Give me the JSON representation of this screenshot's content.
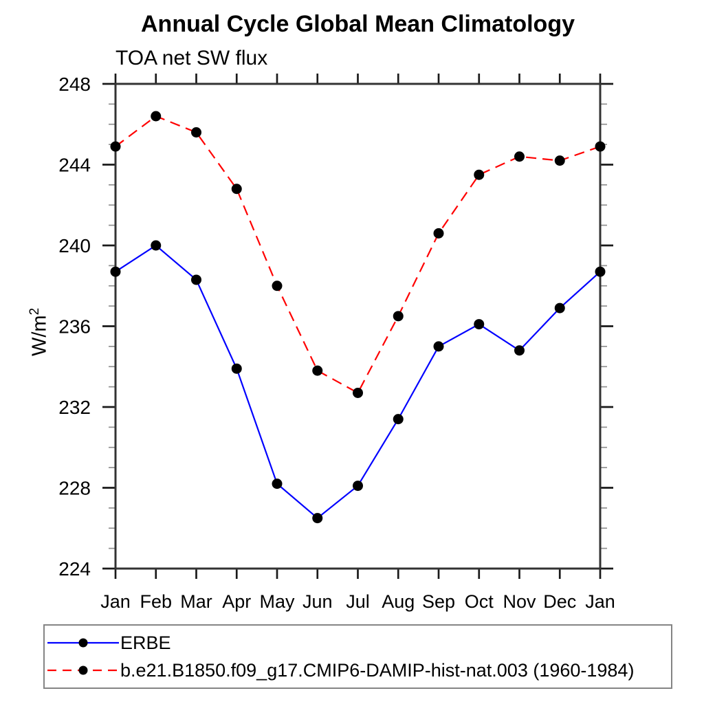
{
  "background_color": "#ffffff",
  "chart_data": {
    "type": "line",
    "title": "Annual Cycle Global Mean Climatology",
    "subtitle": "TOA net SW flux",
    "ylabel_base": "W/m",
    "ylabel_exponent": "2",
    "xlabel": "",
    "categories": [
      "Jan",
      "Feb",
      "Mar",
      "Apr",
      "May",
      "Jun",
      "Jul",
      "Aug",
      "Sep",
      "Oct",
      "Nov",
      "Dec",
      "Jan"
    ],
    "series": [
      {
        "name": "ERBE",
        "color": "#0000ff",
        "line_style": "solid",
        "marker": "filled-circle",
        "marker_color": "#000000",
        "values": [
          238.7,
          240.0,
          238.3,
          233.9,
          228.2,
          226.5,
          228.1,
          231.4,
          235.0,
          236.1,
          234.8,
          236.9,
          238.7
        ]
      },
      {
        "name": "b.e21.B1850.f09_g17.CMIP6-DAMIP-hist-nat.003 (1960-1984)",
        "color": "#ff0000",
        "line_style": "dashed",
        "marker": "filled-circle",
        "marker_color": "#000000",
        "values": [
          244.9,
          246.4,
          245.6,
          242.8,
          238.0,
          233.8,
          232.7,
          236.5,
          240.6,
          243.5,
          244.4,
          244.2,
          244.9
        ]
      }
    ],
    "ylim": [
      224,
      248
    ],
    "ytick_major": [
      224,
      228,
      232,
      236,
      240,
      244,
      248
    ],
    "y_tick_labels": [
      "224",
      "228",
      "232",
      "236",
      "240",
      "244",
      "248"
    ],
    "ytick_minor_step": 1,
    "grid": false,
    "tick_direction": "out",
    "frame": "box",
    "axis_color": "#333333",
    "major_tick_color": "#1a1a1a",
    "minor_tick_color": "#909090",
    "legend_position": "bottom-left-boxed"
  }
}
